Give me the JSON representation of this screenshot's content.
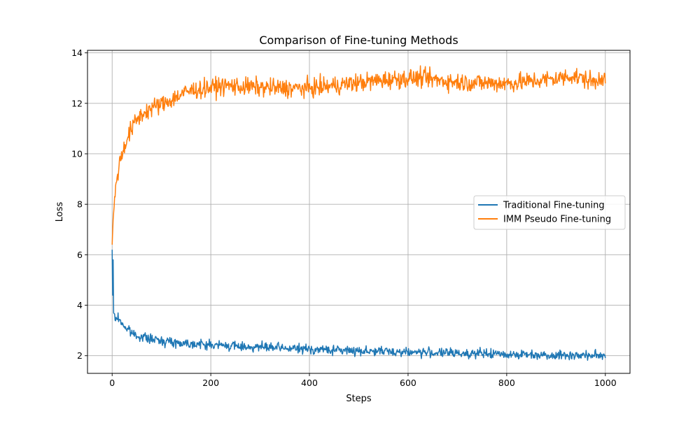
{
  "chart_data": {
    "type": "line",
    "title": "Comparison of Fine-tuning Methods",
    "xlabel": "Steps",
    "ylabel": "Loss",
    "xlim": [
      -50,
      1050
    ],
    "ylim": [
      1.3,
      14.1
    ],
    "xticks": [
      0,
      200,
      400,
      600,
      800,
      1000
    ],
    "yticks": [
      2,
      4,
      6,
      8,
      10,
      12,
      14
    ],
    "grid": true,
    "legend_position": "center-right",
    "series": [
      {
        "name": "Traditional Fine-tuning",
        "color": "#1f77b4",
        "x": [
          0,
          1,
          2,
          3,
          5,
          8,
          12,
          16,
          20,
          25,
          30,
          35,
          40,
          45,
          50,
          60,
          70,
          80,
          90,
          100,
          110,
          120,
          130,
          140,
          150,
          160,
          170,
          180,
          190,
          200,
          210,
          220,
          230,
          240,
          250,
          260,
          270,
          280,
          290,
          300,
          310,
          320,
          330,
          340,
          350,
          360,
          370,
          380,
          390,
          400,
          410,
          420,
          430,
          440,
          450,
          460,
          470,
          480,
          490,
          500,
          510,
          520,
          530,
          540,
          550,
          560,
          570,
          580,
          590,
          600,
          610,
          620,
          630,
          640,
          650,
          660,
          670,
          680,
          690,
          700,
          710,
          720,
          730,
          740,
          750,
          760,
          770,
          780,
          790,
          800,
          810,
          820,
          830,
          840,
          850,
          860,
          870,
          880,
          890,
          900,
          910,
          920,
          930,
          940,
          950,
          960,
          970,
          980,
          990,
          1000
        ],
        "values": [
          6.2,
          4.4,
          5.8,
          3.7,
          3.5,
          3.45,
          3.5,
          3.4,
          3.3,
          3.15,
          3.05,
          3.0,
          2.9,
          2.85,
          2.8,
          2.75,
          2.7,
          2.65,
          2.62,
          2.6,
          2.58,
          2.55,
          2.52,
          2.5,
          2.5,
          2.48,
          2.47,
          2.45,
          2.44,
          2.43,
          2.42,
          2.41,
          2.4,
          2.39,
          2.38,
          2.37,
          2.36,
          2.35,
          2.35,
          2.34,
          2.33,
          2.32,
          2.31,
          2.3,
          2.29,
          2.29,
          2.28,
          2.27,
          2.26,
          2.26,
          2.25,
          2.24,
          2.24,
          2.23,
          2.22,
          2.22,
          2.21,
          2.21,
          2.2,
          2.2,
          2.19,
          2.19,
          2.18,
          2.18,
          2.17,
          2.17,
          2.16,
          2.16,
          2.15,
          2.15,
          2.14,
          2.14,
          2.13,
          2.13,
          2.12,
          2.12,
          2.11,
          2.11,
          2.1,
          2.1,
          2.1,
          2.09,
          2.09,
          2.08,
          2.08,
          2.08,
          2.07,
          2.07,
          2.06,
          2.06,
          2.06,
          2.05,
          2.05,
          2.05,
          2.04,
          2.04,
          2.04,
          2.03,
          2.03,
          2.03,
          2.02,
          2.02,
          2.02,
          2.02,
          2.01,
          2.01,
          2.01,
          2.01,
          2.0,
          2.05
        ]
      },
      {
        "name": "IMM Pseudo Fine-tuning",
        "color": "#ff7f0e",
        "x": [
          0,
          2,
          5,
          8,
          12,
          16,
          20,
          25,
          30,
          35,
          40,
          45,
          50,
          60,
          70,
          80,
          90,
          100,
          110,
          120,
          130,
          140,
          150,
          160,
          170,
          180,
          190,
          200,
          210,
          220,
          230,
          240,
          250,
          260,
          270,
          280,
          290,
          300,
          310,
          320,
          330,
          340,
          350,
          360,
          370,
          380,
          390,
          400,
          410,
          420,
          430,
          440,
          450,
          460,
          470,
          480,
          490,
          500,
          510,
          520,
          530,
          540,
          550,
          560,
          570,
          580,
          590,
          600,
          610,
          620,
          630,
          640,
          650,
          660,
          670,
          680,
          690,
          700,
          710,
          720,
          730,
          740,
          750,
          760,
          770,
          780,
          790,
          800,
          810,
          820,
          830,
          840,
          850,
          860,
          870,
          880,
          890,
          900,
          910,
          920,
          930,
          940,
          950,
          960,
          970,
          980,
          990,
          1000
        ],
        "values": [
          6.4,
          7.4,
          8.2,
          8.9,
          9.3,
          9.7,
          10.0,
          10.3,
          10.6,
          10.8,
          11.0,
          11.2,
          11.35,
          11.55,
          11.7,
          11.8,
          11.9,
          11.95,
          12.05,
          12.15,
          12.25,
          12.35,
          12.45,
          12.5,
          12.55,
          12.55,
          12.6,
          12.62,
          12.65,
          12.68,
          12.7,
          12.7,
          12.68,
          12.66,
          12.65,
          12.65,
          12.64,
          12.63,
          12.62,
          12.62,
          12.6,
          12.6,
          12.6,
          12.6,
          12.6,
          12.6,
          12.6,
          12.6,
          12.62,
          12.64,
          12.66,
          12.68,
          12.7,
          12.72,
          12.75,
          12.78,
          12.8,
          12.82,
          12.84,
          12.86,
          12.88,
          12.9,
          12.92,
          12.94,
          12.96,
          12.97,
          12.98,
          12.99,
          13.0,
          13.0,
          13.0,
          12.98,
          12.95,
          12.92,
          12.9,
          12.88,
          12.86,
          12.85,
          12.84,
          12.83,
          12.82,
          12.82,
          12.81,
          12.8,
          12.8,
          12.8,
          12.8,
          12.8,
          12.8,
          12.82,
          12.84,
          12.86,
          12.88,
          12.9,
          12.92,
          12.94,
          12.96,
          12.98,
          13.0,
          13.05,
          13.1,
          13.05,
          13.0,
          12.95,
          12.9,
          12.8,
          13.1,
          13.0
        ]
      }
    ]
  }
}
